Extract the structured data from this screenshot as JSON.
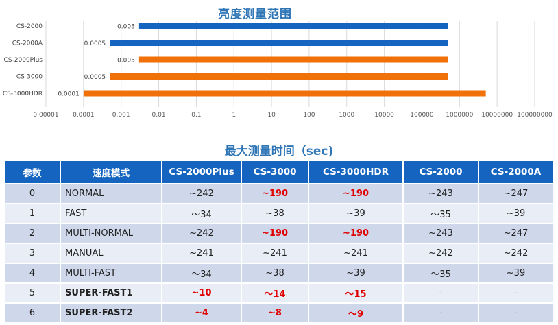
{
  "chart_data": {
    "type": "bar",
    "orientation": "horizontal",
    "title": "亮度测量范围",
    "x_scale": "log",
    "xlim": [
      1e-05,
      100000000
    ],
    "x_ticks": [
      "0.00001",
      "0.0001",
      "0.001",
      "0.01",
      "0.1",
      "1",
      "10",
      "100",
      "1000",
      "10000",
      "100000",
      "1000000",
      "10000000",
      "100000000"
    ],
    "categories": [
      "CS-2000",
      "CS-2000A",
      "CS-2000Plus",
      "CS-3000",
      "CS-3000HDR"
    ],
    "range_min": [
      0.003,
      0.0005,
      0.003,
      0.0005,
      0.0001
    ],
    "range_min_labels": [
      "0.003",
      "0.0005",
      "0.003",
      "0.0005",
      "0.0001"
    ],
    "range_max": [
      500000,
      500000,
      500000,
      500000,
      5000000
    ],
    "bar_colors": [
      "#1565C0",
      "#1565C0",
      "#F0700A",
      "#F0700A",
      "#F0700A"
    ],
    "grid": true
  },
  "table": {
    "title": "最大测量时间（sec)",
    "headers": [
      "参数",
      "速度模式",
      "CS-2000Plus",
      "CS-3000",
      "CS-3000HDR",
      "CS-2000",
      "CS-2000A"
    ],
    "rows": [
      {
        "param": "0",
        "mode": "NORMAL",
        "v": [
          "~242",
          "~190",
          "~190",
          "~243",
          "~247"
        ]
      },
      {
        "param": "1",
        "mode": "FAST",
        "v": [
          "～34",
          "~38",
          "~39",
          "～35",
          "~39"
        ]
      },
      {
        "param": "2",
        "mode": "MULTI-NORMAL",
        "v": [
          "~242",
          "~190",
          "~190",
          "~243",
          "~247"
        ]
      },
      {
        "param": "3",
        "mode": "MANUAL",
        "v": [
          "~241",
          "~241",
          "~241",
          "~242",
          "~242"
        ]
      },
      {
        "param": "4",
        "mode": "MULTI-FAST",
        "v": [
          "～34",
          "~38",
          "~39",
          "～35",
          "~39"
        ]
      },
      {
        "param": "5",
        "mode": "SUPER-FAST1",
        "v": [
          "~10",
          "～14",
          "～15",
          "-",
          "-"
        ]
      },
      {
        "param": "6",
        "mode": "SUPER-FAST2",
        "v": [
          "~4",
          "~8",
          "～9",
          "-",
          "-"
        ]
      }
    ],
    "highlight_color": "#E00000"
  }
}
